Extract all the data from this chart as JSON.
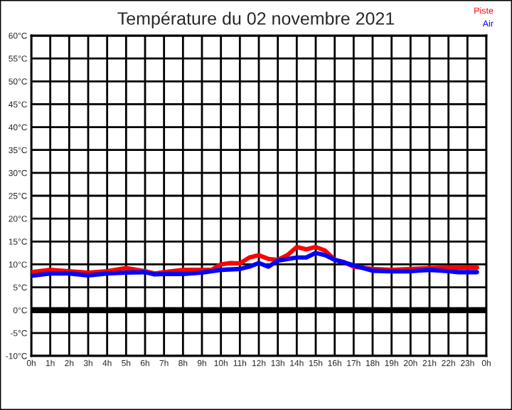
{
  "chart_data": {
    "type": "line",
    "title": "Température du 02 novembre 2021",
    "xlim": [
      "2021-11-02T00:00",
      "2021-11-03T00:00"
    ],
    "ylim": [
      -10,
      60
    ],
    "xticks": [
      {
        "value": "2021-11-02T00:00",
        "label": "0h"
      },
      {
        "value": "2021-11-02T01:00",
        "label": "1h"
      },
      {
        "value": "2021-11-02T02:00",
        "label": "2h"
      },
      {
        "value": "2021-11-02T03:00",
        "label": "3h"
      },
      {
        "value": "2021-11-02T04:00",
        "label": "4h"
      },
      {
        "value": "2021-11-02T05:00",
        "label": "5h"
      },
      {
        "value": "2021-11-02T06:00",
        "label": "6h"
      },
      {
        "value": "2021-11-02T07:00",
        "label": "7h"
      },
      {
        "value": "2021-11-02T08:00",
        "label": "8h"
      },
      {
        "value": "2021-11-02T09:00",
        "label": "9h"
      },
      {
        "value": "2021-11-02T10:00",
        "label": "10h"
      },
      {
        "value": "2021-11-02T11:00",
        "label": "11h"
      },
      {
        "value": "2021-11-02T12:00",
        "label": "12h"
      },
      {
        "value": "2021-11-02T13:00",
        "label": "13h"
      },
      {
        "value": "2021-11-02T14:00",
        "label": "14h"
      },
      {
        "value": "2021-11-02T15:00",
        "label": "15h"
      },
      {
        "value": "2021-11-02T16:00",
        "label": "16h"
      },
      {
        "value": "2021-11-02T17:00",
        "label": "17h"
      },
      {
        "value": "2021-11-02T18:00",
        "label": "18h"
      },
      {
        "value": "2021-11-02T19:00",
        "label": "19h"
      },
      {
        "value": "2021-11-02T20:00",
        "label": "20h"
      },
      {
        "value": "2021-11-02T21:00",
        "label": "21h"
      },
      {
        "value": "2021-11-02T22:00",
        "label": "22h"
      },
      {
        "value": "2021-11-02T23:00",
        "label": "23h"
      },
      {
        "value": "2021-11-03T00:00",
        "label": "0h"
      }
    ],
    "yticks": [
      {
        "value": -10,
        "label": "-10°C"
      },
      {
        "value": -5,
        "label": "-5°C"
      },
      {
        "value": 0,
        "label": "0°C"
      },
      {
        "value": 5,
        "label": "5°C"
      },
      {
        "value": 10,
        "label": "10°C"
      },
      {
        "value": 15,
        "label": "15°C"
      },
      {
        "value": 20,
        "label": "20°C"
      },
      {
        "value": 25,
        "label": "25°C"
      },
      {
        "value": 30,
        "label": "30°C"
      },
      {
        "value": 35,
        "label": "35°C"
      },
      {
        "value": 40,
        "label": "40°C"
      },
      {
        "value": 45,
        "label": "45°C"
      },
      {
        "value": 50,
        "label": "50°C"
      },
      {
        "value": 55,
        "label": "55°C"
      },
      {
        "value": 60,
        "label": "60°C"
      }
    ],
    "grid": true,
    "legend": "top right",
    "ref_lines": [
      {
        "axis": "y",
        "value": 0,
        "color": "#000000"
      }
    ],
    "series": [
      {
        "name": "Piste",
        "color": "#ff0000",
        "x": [
          "2021-11-02T00:00",
          "2021-11-02T01:00",
          "2021-11-02T02:00",
          "2021-11-02T03:00",
          "2021-11-02T04:00",
          "2021-11-02T05:00",
          "2021-11-02T06:00",
          "2021-11-02T06:30",
          "2021-11-02T07:00",
          "2021-11-02T08:00",
          "2021-11-02T09:00",
          "2021-11-02T09:30",
          "2021-11-02T10:00",
          "2021-11-02T10:30",
          "2021-11-02T11:00",
          "2021-11-02T11:30",
          "2021-11-02T12:00",
          "2021-11-02T12:30",
          "2021-11-02T13:00",
          "2021-11-02T13:30",
          "2021-11-02T14:00",
          "2021-11-02T14:30",
          "2021-11-02T15:00",
          "2021-11-02T15:30",
          "2021-11-02T16:00",
          "2021-11-02T16:30",
          "2021-11-02T17:00",
          "2021-11-02T18:00",
          "2021-11-02T19:00",
          "2021-11-02T20:00",
          "2021-11-02T21:00",
          "2021-11-02T22:00",
          "2021-11-02T23:30"
        ],
        "values": [
          8.3,
          8.8,
          8.5,
          8.2,
          8.5,
          9.2,
          8.5,
          8.0,
          8.3,
          8.8,
          8.8,
          8.8,
          10,
          10.3,
          10.2,
          11.5,
          12,
          11.2,
          11,
          12,
          13.8,
          13.3,
          13.8,
          13,
          11,
          10.5,
          9.5,
          9.0,
          8.8,
          9.0,
          9.2,
          9.3,
          9.3
        ]
      },
      {
        "name": "Air",
        "color": "#0000ff",
        "x": [
          "2021-11-02T00:00",
          "2021-11-02T01:00",
          "2021-11-02T02:00",
          "2021-11-02T03:00",
          "2021-11-02T04:00",
          "2021-11-02T05:00",
          "2021-11-02T06:00",
          "2021-11-02T06:30",
          "2021-11-02T07:00",
          "2021-11-02T08:00",
          "2021-11-02T09:00",
          "2021-11-02T10:00",
          "2021-11-02T11:00",
          "2021-11-02T11:30",
          "2021-11-02T12:00",
          "2021-11-02T12:30",
          "2021-11-02T13:00",
          "2021-11-02T14:00",
          "2021-11-02T14:30",
          "2021-11-02T15:00",
          "2021-11-02T15:30",
          "2021-11-02T16:00",
          "2021-11-02T17:00",
          "2021-11-02T18:00",
          "2021-11-02T19:00",
          "2021-11-02T20:00",
          "2021-11-02T21:00",
          "2021-11-02T22:00",
          "2021-11-02T22:30",
          "2021-11-02T23:30"
        ],
        "values": [
          7.5,
          8,
          8,
          7.6,
          8,
          8.2,
          8.3,
          7.8,
          7.9,
          7.9,
          8.2,
          8.8,
          9,
          9.5,
          10.3,
          9.5,
          10.8,
          11.5,
          11.5,
          12.5,
          12,
          11,
          9.8,
          8.6,
          8.5,
          8.5,
          8.8,
          8.5,
          8.3,
          8.3
        ]
      }
    ]
  }
}
